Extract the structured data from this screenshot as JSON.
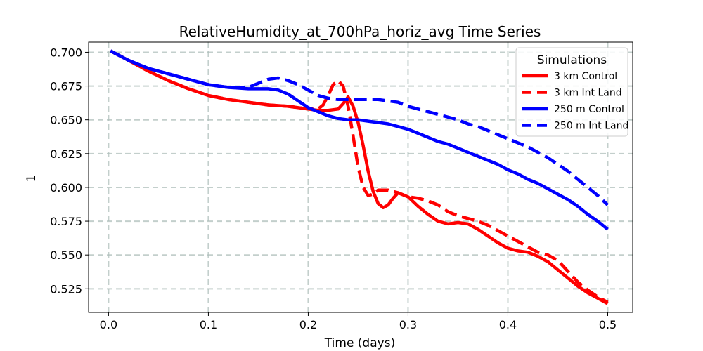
{
  "chart_data": {
    "type": "line",
    "title": "RelativeHumidity_at_700hPa_horiz_avg Time Series",
    "xlabel": "Time (days)",
    "ylabel": "1",
    "xlim": [
      -0.02,
      0.525
    ],
    "ylim": [
      0.5075,
      0.7075
    ],
    "xticks": [
      0.0,
      0.1,
      0.2,
      0.3,
      0.4,
      0.5
    ],
    "xtick_labels": [
      "0.0",
      "0.1",
      "0.2",
      "0.3",
      "0.4",
      "0.5"
    ],
    "yticks": [
      0.525,
      0.55,
      0.575,
      0.6,
      0.625,
      0.65,
      0.675,
      0.7
    ],
    "ytick_labels": [
      "0.525",
      "0.550",
      "0.575",
      "0.600",
      "0.625",
      "0.650",
      "0.675",
      "0.700"
    ],
    "grid": true,
    "grid_style": "dashed",
    "legend": {
      "title": "Simulations",
      "placement": "top-right"
    },
    "series": [
      {
        "name": "3 km Control",
        "color": "#ff0000",
        "dash": "solid",
        "x": [
          0.002,
          0.02,
          0.04,
          0.06,
          0.08,
          0.1,
          0.12,
          0.14,
          0.16,
          0.18,
          0.2,
          0.21,
          0.22,
          0.23,
          0.235,
          0.24,
          0.245,
          0.25,
          0.255,
          0.26,
          0.265,
          0.27,
          0.275,
          0.28,
          0.285,
          0.29,
          0.3,
          0.31,
          0.32,
          0.33,
          0.34,
          0.35,
          0.36,
          0.37,
          0.38,
          0.39,
          0.4,
          0.41,
          0.42,
          0.43,
          0.44,
          0.45,
          0.46,
          0.47,
          0.48,
          0.49,
          0.5
        ],
        "values": [
          0.701,
          0.694,
          0.686,
          0.679,
          0.673,
          0.668,
          0.665,
          0.663,
          0.661,
          0.66,
          0.658,
          0.657,
          0.657,
          0.658,
          0.662,
          0.667,
          0.66,
          0.648,
          0.631,
          0.612,
          0.597,
          0.588,
          0.585,
          0.587,
          0.592,
          0.596,
          0.593,
          0.586,
          0.58,
          0.575,
          0.573,
          0.574,
          0.573,
          0.569,
          0.564,
          0.559,
          0.555,
          0.553,
          0.552,
          0.549,
          0.545,
          0.539,
          0.533,
          0.527,
          0.522,
          0.518,
          0.514
        ]
      },
      {
        "name": "3 km Int Land",
        "color": "#ff0000",
        "dash": "dashed",
        "x": [
          0.002,
          0.02,
          0.04,
          0.06,
          0.08,
          0.1,
          0.12,
          0.14,
          0.16,
          0.18,
          0.2,
          0.21,
          0.215,
          0.22,
          0.225,
          0.23,
          0.235,
          0.24,
          0.245,
          0.25,
          0.255,
          0.26,
          0.265,
          0.27,
          0.28,
          0.29,
          0.3,
          0.31,
          0.32,
          0.33,
          0.34,
          0.35,
          0.36,
          0.37,
          0.38,
          0.39,
          0.4,
          0.41,
          0.42,
          0.43,
          0.44,
          0.45,
          0.46,
          0.47,
          0.48,
          0.49,
          0.5
        ],
        "values": [
          0.701,
          0.694,
          0.686,
          0.679,
          0.673,
          0.668,
          0.665,
          0.663,
          0.661,
          0.66,
          0.658,
          0.658,
          0.661,
          0.668,
          0.676,
          0.679,
          0.675,
          0.66,
          0.638,
          0.615,
          0.6,
          0.594,
          0.595,
          0.598,
          0.598,
          0.596,
          0.593,
          0.592,
          0.59,
          0.587,
          0.582,
          0.579,
          0.577,
          0.575,
          0.572,
          0.568,
          0.564,
          0.56,
          0.556,
          0.552,
          0.55,
          0.546,
          0.538,
          0.53,
          0.524,
          0.519,
          0.515
        ]
      },
      {
        "name": "250 m Control",
        "color": "#0000ff",
        "dash": "solid",
        "x": [
          0.002,
          0.02,
          0.04,
          0.06,
          0.08,
          0.1,
          0.12,
          0.14,
          0.15,
          0.16,
          0.17,
          0.18,
          0.19,
          0.2,
          0.21,
          0.22,
          0.23,
          0.24,
          0.25,
          0.26,
          0.27,
          0.28,
          0.29,
          0.3,
          0.31,
          0.32,
          0.33,
          0.34,
          0.35,
          0.36,
          0.37,
          0.38,
          0.39,
          0.4,
          0.41,
          0.42,
          0.43,
          0.44,
          0.45,
          0.46,
          0.47,
          0.48,
          0.49,
          0.5
        ],
        "values": [
          0.701,
          0.694,
          0.688,
          0.684,
          0.68,
          0.676,
          0.674,
          0.673,
          0.673,
          0.673,
          0.672,
          0.669,
          0.664,
          0.659,
          0.656,
          0.653,
          0.651,
          0.65,
          0.65,
          0.649,
          0.648,
          0.647,
          0.645,
          0.643,
          0.64,
          0.637,
          0.634,
          0.632,
          0.629,
          0.626,
          0.623,
          0.62,
          0.617,
          0.613,
          0.61,
          0.606,
          0.603,
          0.599,
          0.595,
          0.591,
          0.586,
          0.58,
          0.575,
          0.569
        ]
      },
      {
        "name": "250 m Int Land",
        "color": "#0000ff",
        "dash": "dashed",
        "x": [
          0.002,
          0.02,
          0.04,
          0.06,
          0.08,
          0.1,
          0.12,
          0.14,
          0.15,
          0.16,
          0.17,
          0.18,
          0.19,
          0.2,
          0.21,
          0.22,
          0.23,
          0.24,
          0.25,
          0.26,
          0.27,
          0.28,
          0.29,
          0.3,
          0.31,
          0.32,
          0.33,
          0.34,
          0.35,
          0.36,
          0.37,
          0.38,
          0.39,
          0.4,
          0.41,
          0.42,
          0.43,
          0.44,
          0.45,
          0.46,
          0.47,
          0.48,
          0.49,
          0.5
        ],
        "values": [
          0.701,
          0.694,
          0.688,
          0.684,
          0.68,
          0.676,
          0.674,
          0.674,
          0.677,
          0.68,
          0.681,
          0.679,
          0.676,
          0.672,
          0.668,
          0.666,
          0.665,
          0.665,
          0.665,
          0.665,
          0.665,
          0.664,
          0.663,
          0.66,
          0.658,
          0.656,
          0.654,
          0.652,
          0.65,
          0.647,
          0.645,
          0.642,
          0.639,
          0.636,
          0.633,
          0.63,
          0.626,
          0.622,
          0.617,
          0.612,
          0.606,
          0.6,
          0.594,
          0.587
        ]
      }
    ]
  }
}
